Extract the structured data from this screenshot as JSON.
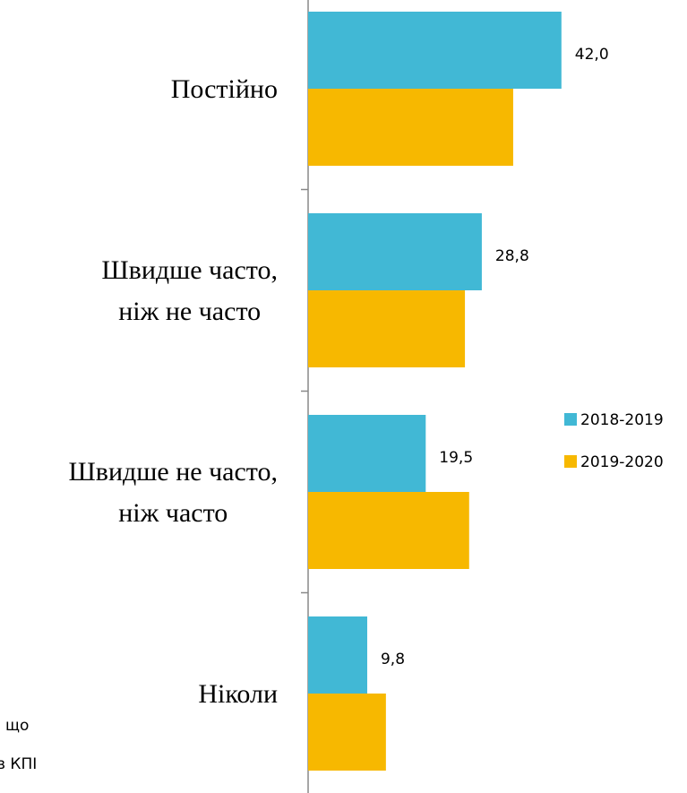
{
  "chart_data": {
    "type": "barh",
    "categories": [
      "Постійно",
      "Швидше часто,\nніж не часто",
      "Швидше не часто,\nніж часто",
      "Ніколи"
    ],
    "series": [
      {
        "name": "2018-2019",
        "color": "#41b8d5",
        "values": [
          42.0,
          28.8,
          19.5,
          9.8
        ],
        "value_labels": [
          "42,0",
          "28,8",
          "19,5",
          "9,8"
        ]
      },
      {
        "name": "2019-2020",
        "color": "#f7b800",
        "values": [
          34.0,
          26.0,
          26.7,
          12.9
        ]
      }
    ],
    "xlim": [
      0,
      60
    ],
    "legend": "right",
    "notes": [
      "що",
      "в КПІ"
    ]
  }
}
